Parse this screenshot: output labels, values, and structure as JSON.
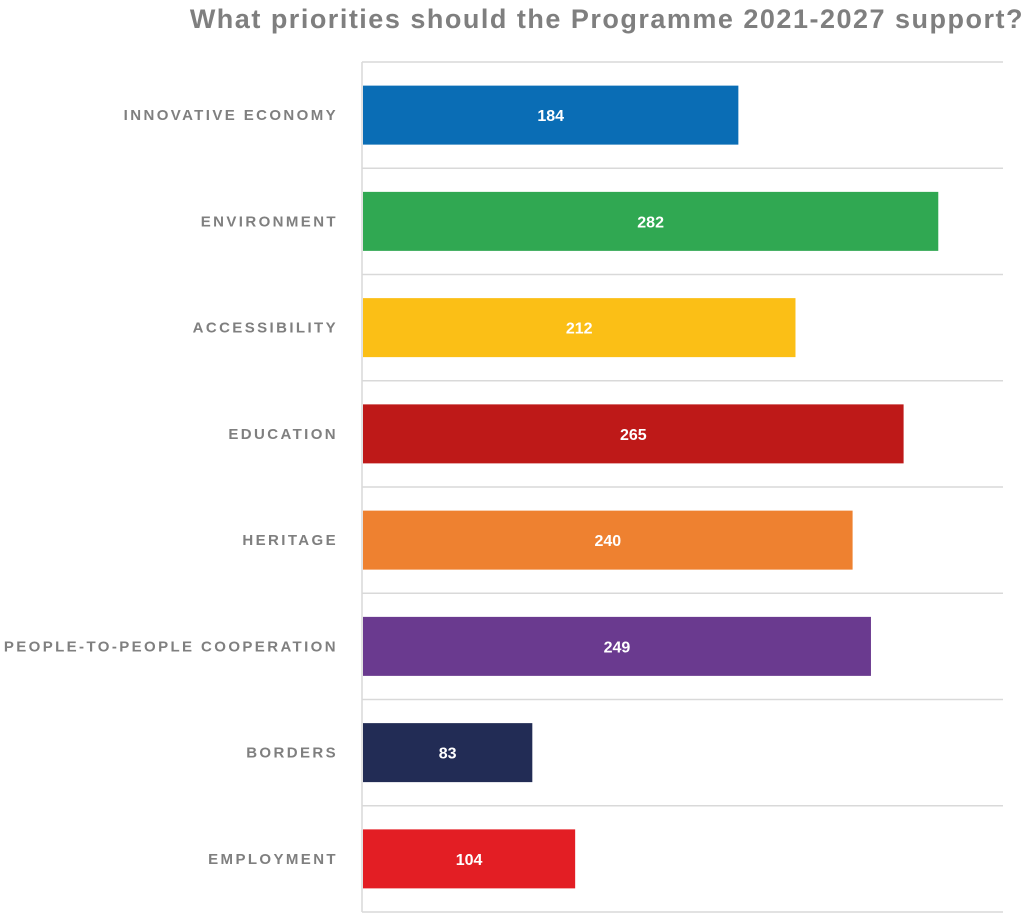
{
  "chart_data": {
    "type": "bar",
    "orientation": "horizontal",
    "title": "What priorities should the Programme 2021-2027 support?",
    "categories": [
      "INNOVATIVE ECONOMY",
      "ENVIRONMENT",
      "ACCESSIBILITY",
      "EDUCATION",
      "HERITAGE",
      "PEOPLE-TO-PEOPLE COOPERATION",
      "BORDERS",
      "EMPLOYMENT"
    ],
    "values": [
      184,
      282,
      212,
      265,
      240,
      249,
      83,
      104
    ],
    "colors": [
      "#0a6db5",
      "#30a852",
      "#fbbf16",
      "#be1918",
      "#ee8130",
      "#6a3a8f",
      "#222c55",
      "#e31e24"
    ],
    "xlim": [
      0,
      300
    ],
    "grid": true,
    "legend": "none",
    "data_labels": true
  }
}
